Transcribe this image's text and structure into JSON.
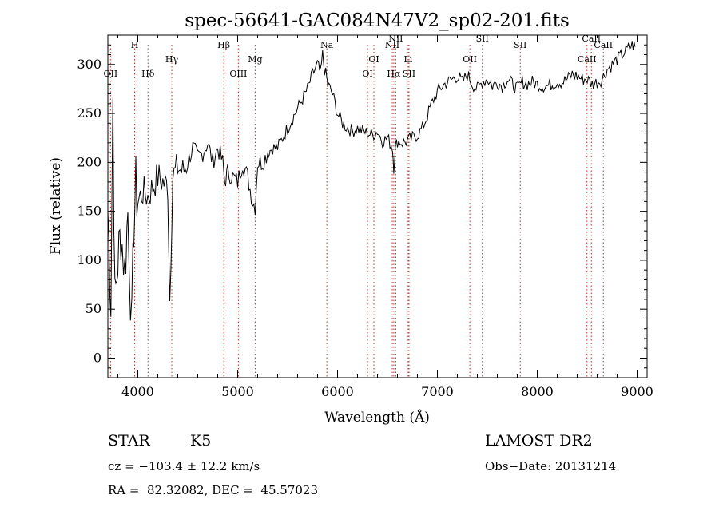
{
  "chart_data": {
    "type": "line",
    "title": "spec-56641-GAC084N47V2_sp02-201.fits",
    "xlabel": "Wavelength (Å)",
    "ylabel": "Flux (relative)",
    "xlim": [
      3700,
      9100
    ],
    "ylim": [
      -20,
      330
    ],
    "xticks": [
      4000,
      5000,
      6000,
      7000,
      8000,
      9000
    ],
    "yticks": [
      0,
      50,
      100,
      150,
      200,
      250,
      300
    ],
    "grid": false,
    "line_color": "#000000",
    "marker_color": "#c0392b",
    "spectrum": {
      "x": [
        3700,
        3730,
        3750,
        3770,
        3800,
        3830,
        3870,
        3900,
        3940,
        3960,
        3980,
        4000,
        4050,
        4100,
        4150,
        4200,
        4250,
        4300,
        4320,
        4350,
        4400,
        4450,
        4500,
        4550,
        4600,
        4650,
        4700,
        4750,
        4800,
        4850,
        4870,
        4900,
        4950,
        5000,
        5050,
        5100,
        5150,
        5175,
        5200,
        5250,
        5300,
        5350,
        5400,
        5450,
        5500,
        5550,
        5600,
        5650,
        5700,
        5750,
        5800,
        5830,
        5850,
        5870,
        5893,
        5900,
        5950,
        6000,
        6050,
        6100,
        6150,
        6200,
        6250,
        6300,
        6350,
        6400,
        6450,
        6500,
        6550,
        6563,
        6580,
        6600,
        6650,
        6700,
        6750,
        6800,
        6850,
        6900,
        6950,
        7000,
        7050,
        7100,
        7150,
        7200,
        7250,
        7300,
        7350,
        7400,
        7450,
        7500,
        7550,
        7600,
        7650,
        7700,
        7750,
        7800,
        7850,
        7900,
        7950,
        8000,
        8050,
        8100,
        8150,
        8200,
        8250,
        8300,
        8350,
        8400,
        8450,
        8500,
        8550,
        8600,
        8650,
        8700,
        8750,
        8800,
        8850,
        8900,
        8950,
        8980
      ],
      "y": [
        150,
        60,
        265,
        55,
        100,
        130,
        90,
        150,
        30,
        140,
        175,
        160,
        170,
        165,
        175,
        185,
        180,
        175,
        60,
        185,
        195,
        190,
        200,
        215,
        205,
        210,
        220,
        200,
        215,
        200,
        180,
        190,
        185,
        180,
        200,
        185,
        160,
        155,
        200,
        200,
        210,
        215,
        215,
        225,
        235,
        245,
        255,
        265,
        275,
        290,
        300,
        290,
        310,
        295,
        285,
        280,
        270,
        250,
        240,
        235,
        232,
        235,
        232,
        230,
        228,
        232,
        222,
        225,
        215,
        195,
        215,
        222,
        220,
        222,
        225,
        228,
        235,
        248,
        262,
        272,
        278,
        282,
        285,
        288,
        282,
        290,
        280,
        275,
        282,
        285,
        278,
        282,
        278,
        285,
        280,
        275,
        282,
        280,
        282,
        280,
        278,
        278,
        280,
        282,
        282,
        285,
        290,
        288,
        285,
        285,
        280,
        282,
        285,
        295,
        300,
        305,
        310,
        315,
        320,
        318
      ]
    },
    "spectral_lines": [
      {
        "label": "OII",
        "x": 3727,
        "tier": 3
      },
      {
        "label": "H",
        "x": 3968,
        "tier": 1
      },
      {
        "label": "Hδ",
        "x": 4102,
        "tier": 3
      },
      {
        "label": "Hγ",
        "x": 4340,
        "tier": 2
      },
      {
        "label": "Hβ",
        "x": 4861,
        "tier": 1
      },
      {
        "label": "OIII",
        "x": 5007,
        "tier": 3
      },
      {
        "label": "Mg",
        "x": 5175,
        "tier": 2
      },
      {
        "label": "Na",
        "x": 5893,
        "tier": 1
      },
      {
        "label": "OI",
        "x": 6300,
        "tier": 3
      },
      {
        "label": "OI",
        "x": 6364,
        "tier": 2
      },
      {
        "label": "NII",
        "x": 6548,
        "tier": 1
      },
      {
        "label": "Hα",
        "x": 6563,
        "tier": 3
      },
      {
        "label": "NII",
        "x": 6583,
        "tier": 0
      },
      {
        "label": "Li",
        "x": 6707,
        "tier": 2
      },
      {
        "label": "SII",
        "x": 6716,
        "tier": 3
      },
      {
        "label": "OII",
        "x": 7325,
        "tier": 2
      },
      {
        "label": "SII",
        "x": 7450,
        "tier": 0
      },
      {
        "label": "SII",
        "x": 7830,
        "tier": 1
      },
      {
        "label": "CaII",
        "x": 8498,
        "tier": 2
      },
      {
        "label": "CaII",
        "x": 8542,
        "tier": 0
      },
      {
        "label": "CaII",
        "x": 8662,
        "tier": 1
      }
    ]
  },
  "info": {
    "object_type": "STAR",
    "subclass": "K5",
    "survey": "LAMOST DR2",
    "cz": "cz = −103.4 ± 12.2 km/s",
    "obs_date": "Obs−Date: 20131214",
    "coords": "RA =  82.32082, DEC =  45.57023"
  }
}
